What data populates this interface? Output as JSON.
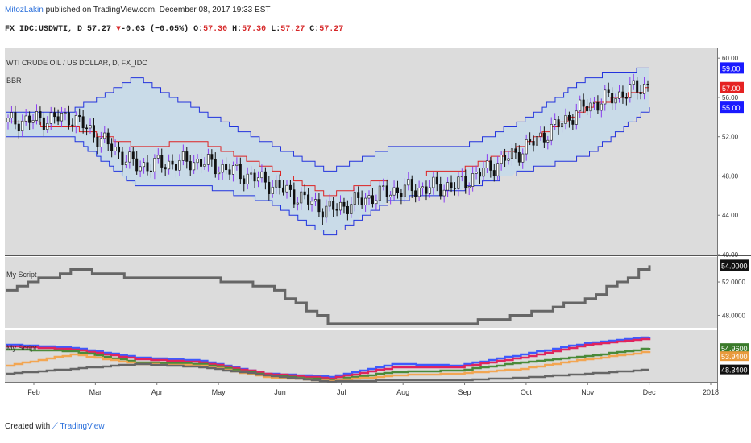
{
  "header": {
    "author": "MitozLakin",
    "published": " published on TradingView.com, December 08, 2017 19:33 EST",
    "symbol_line_a": "FX_IDC:USDWTI, D 57.27",
    "arrow": "▼",
    "symbol_line_b": "-0.03 (−0.05%)",
    "o_label": "O:",
    "o_val": "57.30",
    "h_label": "H:",
    "h_val": "57.30",
    "l_label": "L:",
    "l_val": "57.27",
    "c_label": "C:",
    "c_val": "57.27"
  },
  "pane1": {
    "title": "WTI CRUDE OIL / US DOLLAR, D, FX_IDC",
    "indicator": "BBR",
    "ylim": [
      40,
      61
    ],
    "ticks": [
      "40.00",
      "44.00",
      "48.00",
      "52.00",
      "56.00",
      "60.00"
    ],
    "badges": [
      "59.00",
      "57.00",
      "55.00"
    ],
    "badge_colors": [
      "#1a1aff",
      "#e52222",
      "#1a1aff"
    ]
  },
  "pane2": {
    "title": "My Script",
    "ylim": [
      46.5,
      55
    ],
    "ticks": [
      "48.0000",
      "52.0000"
    ],
    "badge": "54.0000"
  },
  "pane3": {
    "title": "My Script",
    "ylim": [
      44.5,
      60.5
    ],
    "badges": [
      "54.9600",
      "53.9400",
      "48.3400"
    ],
    "badge_colors": [
      "#3a7a2a",
      "#e89a3c",
      "#111111"
    ]
  },
  "xaxis": {
    "labels": [
      "Feb",
      "Mar",
      "Apr",
      "May",
      "Jun",
      "Jul",
      "Aug",
      "Sep",
      "Oct",
      "Nov",
      "Dec",
      "2018"
    ]
  },
  "footer": {
    "created": "Created with",
    "brand": "TradingView"
  },
  "colors": {
    "plot_bg": "#dcdcdc",
    "band_fill": "#c9dbe8",
    "upper_lower": "#2233dd",
    "middle": "#dd2222",
    "candle": "#111111",
    "wick_up": "#8a3cf0",
    "step_line": "#666666",
    "s3_blue": "#3d5afe",
    "s3_red": "#e0245e",
    "s3_green": "#4a8a3a",
    "s3_orange": "#f2a652",
    "s3_gray": "#666666",
    "s3_brown": "#5a3a10"
  },
  "chart_data": [
    {
      "type": "line",
      "name": "WTI CRUDE OIL / US DOLLAR candlestick with BBR channels",
      "x": [
        "Feb",
        "Mar",
        "Apr",
        "May",
        "Jun",
        "Jul",
        "Aug",
        "Sep",
        "Oct",
        "Nov",
        "Dec"
      ],
      "series": [
        {
          "name": "close",
          "values": [
            53.5,
            54.0,
            49.0,
            49.5,
            47.5,
            44.5,
            46.5,
            47.0,
            50.5,
            55.0,
            57.3
          ]
        },
        {
          "name": "upper",
          "values": [
            54.6,
            54.6,
            58.0,
            54.6,
            51.5,
            48.5,
            51.0,
            50.8,
            53.5,
            58.0,
            59.0
          ]
        },
        {
          "name": "middle",
          "values": [
            53.5,
            53.0,
            51.0,
            51.5,
            49.0,
            46.0,
            48.0,
            48.5,
            51.0,
            55.0,
            57.0
          ]
        },
        {
          "name": "lower",
          "values": [
            52.0,
            52.0,
            47.0,
            47.0,
            45.5,
            42.0,
            45.5,
            46.5,
            48.5,
            50.0,
            55.0
          ]
        }
      ],
      "ylim": [
        40,
        61
      ]
    },
    {
      "type": "line",
      "title": "My Script",
      "x": [
        "Feb",
        "Mar",
        "Apr",
        "May",
        "Jun",
        "Jul",
        "Aug",
        "Sep",
        "Oct",
        "Nov",
        "Dec"
      ],
      "values": [
        51.0,
        53.5,
        52.5,
        52.5,
        51.5,
        47.0,
        47.0,
        47.0,
        48.0,
        50.0,
        54.0
      ],
      "ylim": [
        46.5,
        55
      ]
    },
    {
      "type": "line",
      "title": "My Script",
      "x": [
        "Feb",
        "Mar",
        "Apr",
        "May",
        "Jun",
        "Jul",
        "Aug",
        "Sep",
        "Oct",
        "Nov",
        "Dec"
      ],
      "series": [
        {
          "name": "blue",
          "values": [
            56.0,
            55.0,
            52.0,
            51.0,
            47.0,
            46.0,
            50.0,
            49.5,
            53.0,
            56.5,
            58.5
          ]
        },
        {
          "name": "red",
          "values": [
            55.5,
            54.5,
            51.5,
            50.5,
            47.0,
            45.5,
            49.0,
            49.0,
            52.0,
            56.0,
            58.0
          ]
        },
        {
          "name": "green",
          "values": [
            54.5,
            54.0,
            50.5,
            50.0,
            46.5,
            45.0,
            47.5,
            48.0,
            50.5,
            52.5,
            54.96
          ]
        },
        {
          "name": "orange",
          "values": [
            49.5,
            53.0,
            50.0,
            49.5,
            46.0,
            44.8,
            46.5,
            47.0,
            48.5,
            51.5,
            53.94
          ]
        },
        {
          "name": "gray",
          "values": [
            47.0,
            48.5,
            50.0,
            49.0,
            46.5,
            44.6,
            45.0,
            45.0,
            45.8,
            47.0,
            48.34
          ]
        }
      ],
      "ylim": [
        44.5,
        60.5
      ]
    }
  ]
}
